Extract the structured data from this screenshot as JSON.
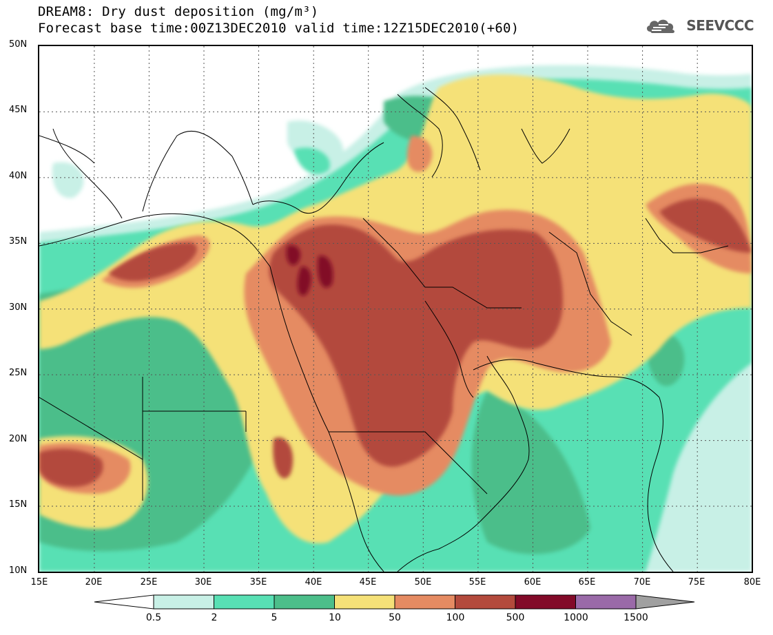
{
  "header": {
    "title_line1": "DREAM8: Dry dust deposition (mg/m³)",
    "title_line2": "Forecast base time:00Z13DEC2010 valid time:12Z15DEC2010(+60)",
    "logo_text": "SEEVCCC"
  },
  "axes": {
    "lat_labels": [
      "50N",
      "45N",
      "40N",
      "35N",
      "30N",
      "25N",
      "20N",
      "15N",
      "10N"
    ],
    "lon_labels": [
      "15E",
      "20E",
      "25E",
      "30E",
      "35E",
      "40E",
      "45E",
      "50E",
      "55E",
      "60E",
      "65E",
      "70E",
      "75E",
      "80E"
    ]
  },
  "colorbar": {
    "labels": [
      "0.5",
      "2",
      "5",
      "10",
      "50",
      "100",
      "500",
      "1000",
      "1500"
    ],
    "colors": [
      "#c8f0e6",
      "#58e0b4",
      "#4cbe8a",
      "#f5e178",
      "#e58b62",
      "#b34a3c",
      "#820a28",
      "#9a6aa8"
    ],
    "under_color": "#ffffff",
    "over_color": "#a0a0a0"
  },
  "colors": {
    "c1": "#c8f0e6",
    "c2": "#58e0b4",
    "c3": "#4cbe8a",
    "c4": "#f5e178",
    "c5": "#e58b62",
    "c6": "#b34a3c",
    "c7": "#820a28"
  }
}
